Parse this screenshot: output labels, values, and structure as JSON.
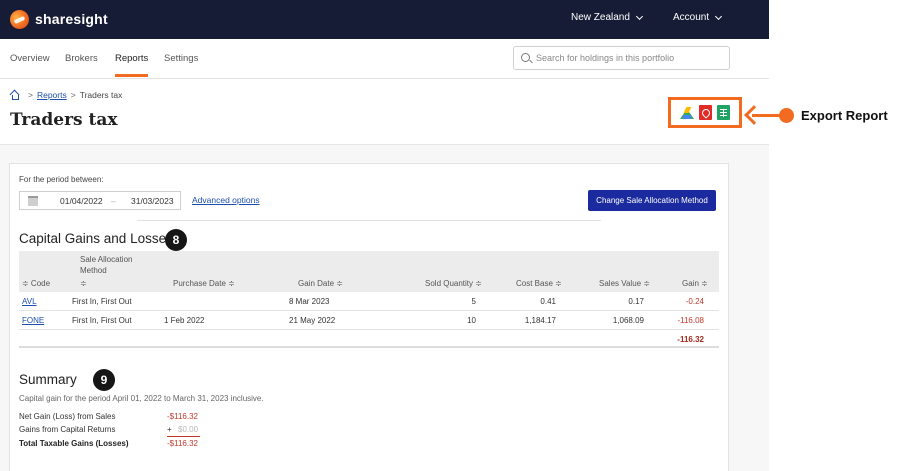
{
  "topbar": {
    "brand": "sharesight",
    "region_label": "New Zealand",
    "account_label": "Account"
  },
  "subnav": {
    "tabs": [
      {
        "label": "Overview",
        "active": false
      },
      {
        "label": "Brokers",
        "active": false
      },
      {
        "label": "Reports",
        "active": true
      },
      {
        "label": "Settings",
        "active": false
      }
    ],
    "search_placeholder": "Search for holdings in this portfolio"
  },
  "breadcrumb": {
    "reports_label": "Reports",
    "current_label": "Traders tax",
    "separator": ">"
  },
  "page_title": "Traders tax",
  "export": {
    "icons": [
      "google-drive-icon",
      "pdf-icon",
      "spreadsheet-icon"
    ],
    "annotation_label": "Export Report",
    "accent_color": "#f26b21"
  },
  "period": {
    "label": "For the period between:",
    "from": "01/04/2022",
    "dash": "–",
    "to": "31/03/2023",
    "advanced_label": "Advanced options",
    "change_button_label": "Change Sale Allocation Method"
  },
  "capital_gains": {
    "title": "Capital Gains and Losses",
    "badge": "8",
    "columns": {
      "code": "≑ Code",
      "method_line1": "Sale Allocation",
      "method_line2": "Method",
      "method_sort": "≑",
      "purchase_date": "Purchase Date ≑",
      "gain_date": "Gain Date ≑",
      "sold_quantity": "Sold Quantity ≑",
      "cost_base": "Cost Base ≑",
      "sales_value": "Sales Value ≑",
      "gain": "Gain ≑"
    },
    "rows": [
      {
        "code": "AVL",
        "method": "First In, First Out",
        "purchase_date": "",
        "gain_date": "8 Mar 2023",
        "sold_quantity": "5",
        "cost_base": "0.41",
        "sales_value": "0.17",
        "gain": "-0.24"
      },
      {
        "code": "FONE",
        "method": "First In, First Out",
        "purchase_date": "1 Feb 2022",
        "gain_date": "21 May 2022",
        "sold_quantity": "10",
        "cost_base": "1,184.17",
        "sales_value": "1,068.09",
        "gain": "-116.08"
      }
    ],
    "total_gain": "-116.32"
  },
  "summary": {
    "title": "Summary",
    "badge": "9",
    "subtitle": "Capital gain for the period April 01, 2022 to March 31, 2023 inclusive.",
    "net_gain_label": "Net Gain (Loss) from Sales",
    "net_gain_value": "-$116.32",
    "capital_returns_label": "Gains from Capital Returns",
    "capital_returns_plus": "+",
    "capital_returns_value": "$0.00",
    "total_label": "Total Taxable Gains (Losses)",
    "total_value": "-$116.32"
  }
}
